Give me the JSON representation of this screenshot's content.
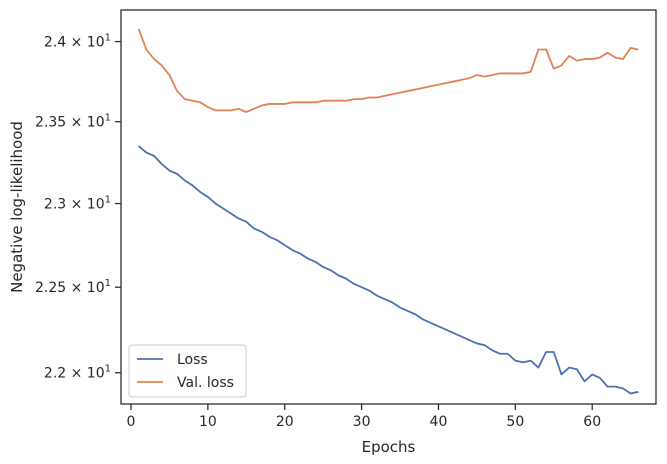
{
  "chart_data": {
    "type": "line",
    "xlabel": "Epochs",
    "ylabel": "Negative log-likelihood",
    "y_scale": "log",
    "xlim": [
      -1.3,
      68.3
    ],
    "ylim": [
      21.82,
      24.2
    ],
    "grid": false,
    "legend": {
      "placement": "lower-left"
    },
    "x_ticks": [
      0,
      10,
      20,
      30,
      40,
      50,
      60
    ],
    "x_tick_labels": [
      "0",
      "10",
      "20",
      "30",
      "40",
      "50",
      "60"
    ],
    "y_ticks": [
      22.0,
      22.5,
      23.0,
      23.5,
      24.0
    ],
    "y_tick_labels": [
      {
        "mantissa": "2.2",
        "exp": "1"
      },
      {
        "mantissa": "2.25",
        "exp": "1"
      },
      {
        "mantissa": "2.3",
        "exp": "1"
      },
      {
        "mantissa": "2.35",
        "exp": "1"
      },
      {
        "mantissa": "2.4",
        "exp": "1"
      }
    ],
    "x": [
      1,
      2,
      3,
      4,
      5,
      6,
      7,
      8,
      9,
      10,
      11,
      12,
      13,
      14,
      15,
      16,
      17,
      18,
      19,
      20,
      21,
      22,
      23,
      24,
      25,
      26,
      27,
      28,
      29,
      30,
      31,
      32,
      33,
      34,
      35,
      36,
      37,
      38,
      39,
      40,
      41,
      42,
      43,
      44,
      45,
      46,
      47,
      48,
      49,
      50,
      51,
      52,
      53,
      54,
      55,
      56,
      57,
      58,
      59,
      60,
      61,
      62,
      63,
      64,
      65,
      66
    ],
    "series": [
      {
        "name": "Loss",
        "color": "#4c72b0",
        "values": [
          23.35,
          23.31,
          23.29,
          23.24,
          23.2,
          23.18,
          23.14,
          23.11,
          23.07,
          23.04,
          23.0,
          22.97,
          22.94,
          22.91,
          22.89,
          22.85,
          22.83,
          22.8,
          22.78,
          22.75,
          22.72,
          22.7,
          22.67,
          22.65,
          22.62,
          22.6,
          22.57,
          22.55,
          22.52,
          22.5,
          22.48,
          22.45,
          22.43,
          22.41,
          22.38,
          22.36,
          22.34,
          22.31,
          22.29,
          22.27,
          22.25,
          22.23,
          22.21,
          22.19,
          22.17,
          22.16,
          22.13,
          22.11,
          22.11,
          22.07,
          22.06,
          22.07,
          22.03,
          22.12,
          22.12,
          21.99,
          22.03,
          22.02,
          21.95,
          21.99,
          21.97,
          21.92,
          21.92,
          21.91,
          21.88,
          21.89
        ]
      },
      {
        "name": "Val. loss",
        "color": "#dd8452",
        "values": [
          24.08,
          23.95,
          23.89,
          23.85,
          23.79,
          23.69,
          23.64,
          23.63,
          23.62,
          23.59,
          23.57,
          23.57,
          23.57,
          23.58,
          23.56,
          23.58,
          23.6,
          23.61,
          23.61,
          23.61,
          23.62,
          23.62,
          23.62,
          23.62,
          23.63,
          23.63,
          23.63,
          23.63,
          23.64,
          23.64,
          23.65,
          23.65,
          23.66,
          23.67,
          23.68,
          23.69,
          23.7,
          23.71,
          23.72,
          23.73,
          23.74,
          23.75,
          23.76,
          23.77,
          23.79,
          23.78,
          23.79,
          23.8,
          23.8,
          23.8,
          23.8,
          23.81,
          23.95,
          23.95,
          23.83,
          23.85,
          23.91,
          23.88,
          23.89,
          23.89,
          23.9,
          23.93,
          23.9,
          23.89,
          23.96,
          23.95
        ]
      }
    ]
  }
}
